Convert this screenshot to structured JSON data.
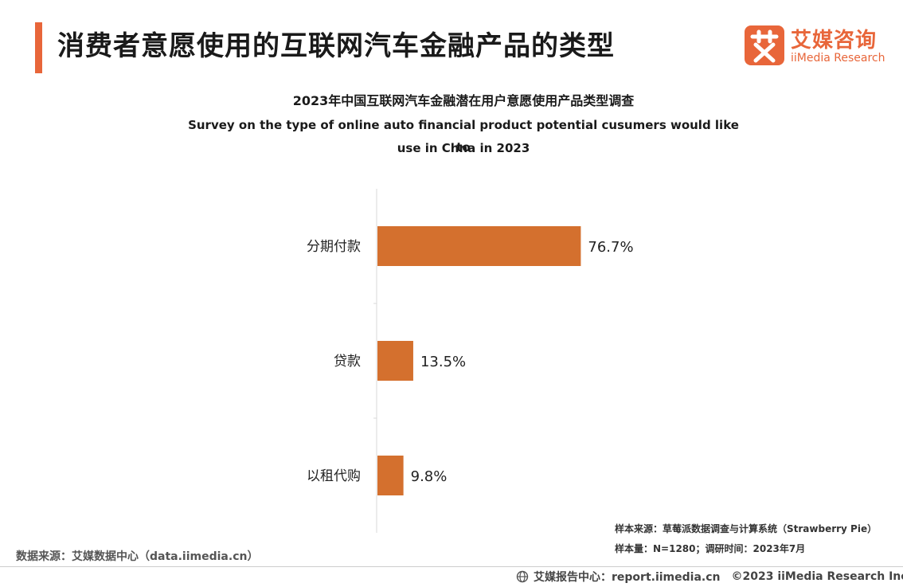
{
  "header": {
    "title": "消费者意愿使用的互联网汽车金融产品的类型"
  },
  "logo": {
    "name_cn": "艾媒咨询",
    "name_en": "iiMedia Research",
    "mark_glyph": "艾",
    "brand_color": "#e8663a"
  },
  "chart_data": {
    "type": "bar",
    "orientation": "horizontal",
    "title_cn": "2023年中国互联网汽车金融潜在用户意愿使用产品类型调查",
    "title_en_line1": "Survey on the type of online auto financial product potential cusumers would like to",
    "title_en_line2": "use in Chna in 2023",
    "categories": [
      "分期付款",
      "贷款",
      "以租代购"
    ],
    "values": [
      76.7,
      13.5,
      9.8
    ],
    "value_labels": [
      "76.7%",
      "13.5%",
      "9.8%"
    ],
    "unit": "%",
    "xlim": [
      0,
      100
    ],
    "grid": false,
    "legend": "none",
    "bar_color": "#d4702e"
  },
  "notes": {
    "sample_source": "样本来源：草莓派数据调查与计算系统（Strawberry Pie）",
    "sample_size": "样本量：N=1280；调研时间：2023年7月"
  },
  "source": "数据来源：艾媒数据中心（data.iimedia.cn）",
  "footer": {
    "report_center": "艾媒报告中心：report.iimedia.cn",
    "copyright": "©2023  iiMedia Research  Inc",
    "icon": "globe-icon"
  }
}
